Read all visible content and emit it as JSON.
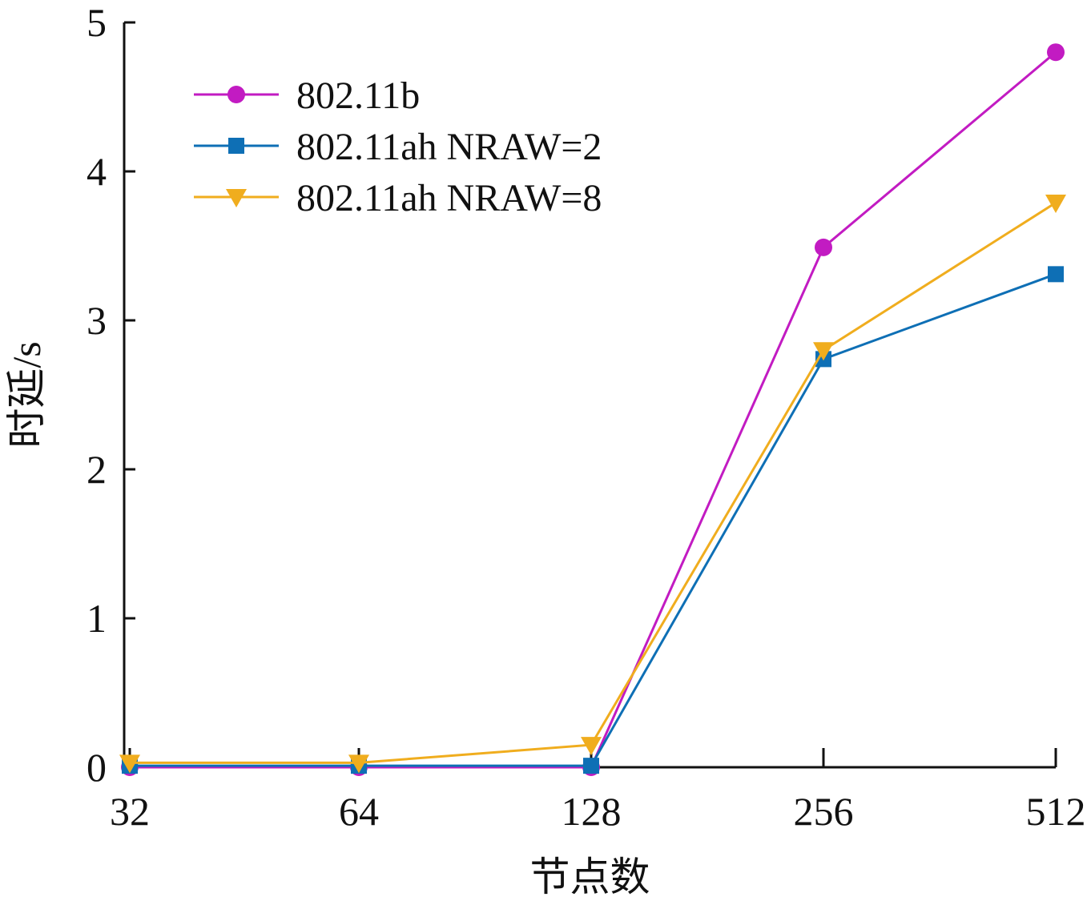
{
  "chart_data": {
    "type": "line",
    "xlabel": "节点数",
    "ylabel": "时延/s",
    "categories": [
      "32",
      "64",
      "128",
      "256",
      "512"
    ],
    "ylim": [
      0,
      5
    ],
    "yticks": [
      "0",
      "1",
      "2",
      "3",
      "4",
      "5"
    ],
    "grid": false,
    "legend_position": "top-left",
    "series": [
      {
        "name": "802.11b",
        "marker": "circle",
        "color": "#c21bc2",
        "values": [
          0.0,
          0.0,
          0.0,
          3.49,
          4.8
        ]
      },
      {
        "name": "802.11ah NRAW=2",
        "marker": "square",
        "color": "#0e6fb5",
        "values": [
          0.01,
          0.01,
          0.01,
          2.74,
          3.31
        ]
      },
      {
        "name": "802.11ah NRAW=8",
        "marker": "triangle-down",
        "color": "#f0ad1e",
        "values": [
          0.03,
          0.03,
          0.15,
          2.8,
          3.79
        ]
      }
    ]
  }
}
